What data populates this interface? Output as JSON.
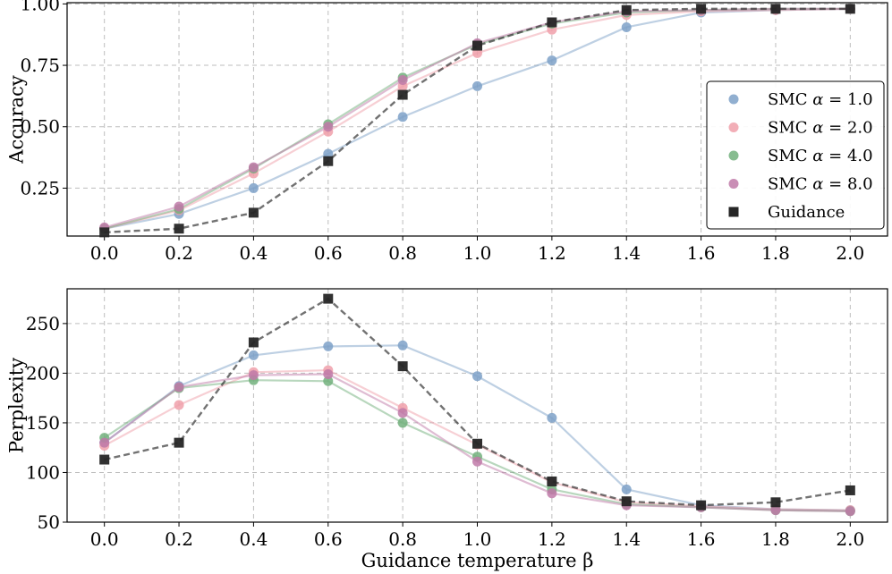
{
  "chart_data": [
    {
      "type": "line",
      "title": "",
      "xlabel": "",
      "ylabel": "Accuracy",
      "x": [
        0.0,
        0.2,
        0.4,
        0.6,
        0.8,
        1.0,
        1.2,
        1.4,
        1.6,
        1.8,
        2.0
      ],
      "xtick_labels": [
        "0.0",
        "0.2",
        "0.4",
        "0.6",
        "0.8",
        "1.0",
        "1.2",
        "1.4",
        "1.6",
        "1.8",
        "2.0"
      ],
      "xlim": [
        -0.1,
        2.1
      ],
      "ylim": [
        0.055,
        1.005
      ],
      "yticks": [
        0.25,
        0.5,
        0.75,
        1.0
      ],
      "ytick_labels": [
        "0.25",
        "0.50",
        "0.75",
        "1.00"
      ],
      "grid": true,
      "legend_position": "center-right",
      "series": [
        {
          "name": "SMC α = 1.0",
          "color": "#7ea1c8",
          "style": "circle-solid",
          "values": [
            0.085,
            0.145,
            0.25,
            0.39,
            0.54,
            0.665,
            0.77,
            0.905,
            0.965,
            0.975,
            0.98
          ]
        },
        {
          "name": "SMC α = 2.0",
          "color": "#f0a0aa",
          "style": "circle-solid",
          "values": [
            0.085,
            0.16,
            0.31,
            0.48,
            0.665,
            0.8,
            0.895,
            0.955,
            0.97,
            0.975,
            0.98
          ]
        },
        {
          "name": "SMC α = 4.0",
          "color": "#72b07c",
          "style": "circle-solid",
          "values": [
            0.085,
            0.165,
            0.33,
            0.51,
            0.7,
            0.835,
            0.92,
            0.965,
            0.975,
            0.98,
            0.98
          ]
        },
        {
          "name": "SMC α = 8.0",
          "color": "#c07aa8",
          "style": "circle-solid",
          "values": [
            0.09,
            0.175,
            0.335,
            0.5,
            0.69,
            0.84,
            0.925,
            0.97,
            0.975,
            0.98,
            0.98
          ]
        },
        {
          "name": "Guidance",
          "color": "#262626",
          "style": "square-dashed",
          "values": [
            0.07,
            0.085,
            0.15,
            0.36,
            0.63,
            0.83,
            0.925,
            0.975,
            0.98,
            0.98,
            0.98
          ]
        }
      ]
    },
    {
      "type": "line",
      "title": "",
      "xlabel": "Guidance temperature β",
      "ylabel": "Perplexity",
      "x": [
        0.0,
        0.2,
        0.4,
        0.6,
        0.8,
        1.0,
        1.2,
        1.4,
        1.6,
        1.8,
        2.0
      ],
      "xtick_labels": [
        "0.0",
        "0.2",
        "0.4",
        "0.6",
        "0.8",
        "1.0",
        "1.2",
        "1.4",
        "1.6",
        "1.8",
        "2.0"
      ],
      "xlim": [
        -0.1,
        2.1
      ],
      "ylim": [
        50,
        285
      ],
      "yticks": [
        50,
        100,
        150,
        200,
        250
      ],
      "ytick_labels": [
        "50",
        "100",
        "150",
        "200",
        "250"
      ],
      "grid": true,
      "series": [
        {
          "name": "SMC α = 1.0",
          "color": "#7ea1c8",
          "style": "circle-solid",
          "values": [
            130,
            187,
            218,
            227,
            228,
            197,
            155,
            83,
            67,
            63,
            62
          ]
        },
        {
          "name": "SMC α = 2.0",
          "color": "#f0a0aa",
          "style": "circle-solid",
          "values": [
            127,
            168,
            201,
            203,
            165,
            128,
            90,
            70,
            66,
            63,
            62
          ]
        },
        {
          "name": "SMC α = 4.0",
          "color": "#72b07c",
          "style": "circle-solid",
          "values": [
            135,
            185,
            193,
            192,
            150,
            116,
            83,
            68,
            65,
            62,
            61
          ]
        },
        {
          "name": "SMC α = 8.0",
          "color": "#c07aa8",
          "style": "circle-solid",
          "values": [
            130,
            186,
            198,
            199,
            160,
            111,
            79,
            67,
            65,
            62,
            61
          ]
        },
        {
          "name": "Guidance",
          "color": "#262626",
          "style": "square-dashed",
          "values": [
            113,
            130,
            231,
            275,
            207,
            129,
            91,
            71,
            67,
            70,
            82
          ]
        }
      ]
    }
  ],
  "legend": {
    "entries": [
      {
        "prefix": "SMC ",
        "alpha_symbol": "α",
        "suffix": " = 1.0"
      },
      {
        "prefix": "SMC ",
        "alpha_symbol": "α",
        "suffix": " = 2.0"
      },
      {
        "prefix": "SMC ",
        "alpha_symbol": "α",
        "suffix": " = 4.0"
      },
      {
        "prefix": "SMC ",
        "alpha_symbol": "α",
        "suffix": " = 8.0"
      },
      {
        "prefix": "Guidance",
        "alpha_symbol": "",
        "suffix": ""
      }
    ]
  }
}
